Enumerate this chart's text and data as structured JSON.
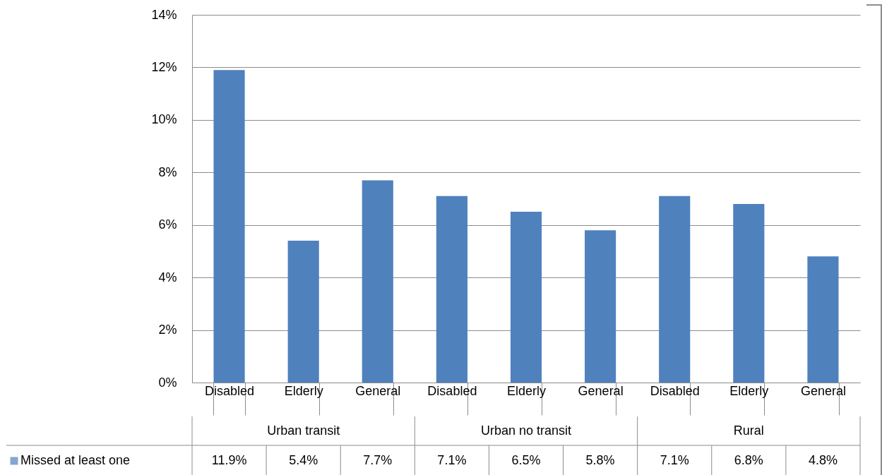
{
  "chart_data": {
    "type": "bar",
    "categories": [
      "Disabled",
      "Elderly",
      "General",
      "Disabled",
      "Elderly",
      "General",
      "Disabled",
      "Elderly",
      "General"
    ],
    "annotations": [
      "Urban transit",
      "Urban no transit",
      "Rural"
    ],
    "series": [
      {
        "name": "Missed at least one",
        "color": "#4f81bd",
        "values": [
          11.9,
          5.4,
          7.7,
          7.1,
          6.5,
          5.8,
          7.1,
          6.8,
          4.8
        ],
        "value_labels": [
          "11.9%",
          "5.4%",
          "7.7%",
          "7.1%",
          "6.5%",
          "5.8%",
          "7.1%",
          "6.8%",
          "4.8%"
        ]
      }
    ],
    "ylim": [
      0,
      14
    ],
    "yticks": [
      {
        "value": 0,
        "label": "0%"
      },
      {
        "value": 2,
        "label": "2%"
      },
      {
        "value": 4,
        "label": "4%"
      },
      {
        "value": 6,
        "label": "6%"
      },
      {
        "value": 8,
        "label": "8%"
      },
      {
        "value": 10,
        "label": "10%"
      },
      {
        "value": 12,
        "label": "12%"
      },
      {
        "value": 14,
        "label": "14%"
      }
    ],
    "grid": "y",
    "legend": "bottom left"
  }
}
